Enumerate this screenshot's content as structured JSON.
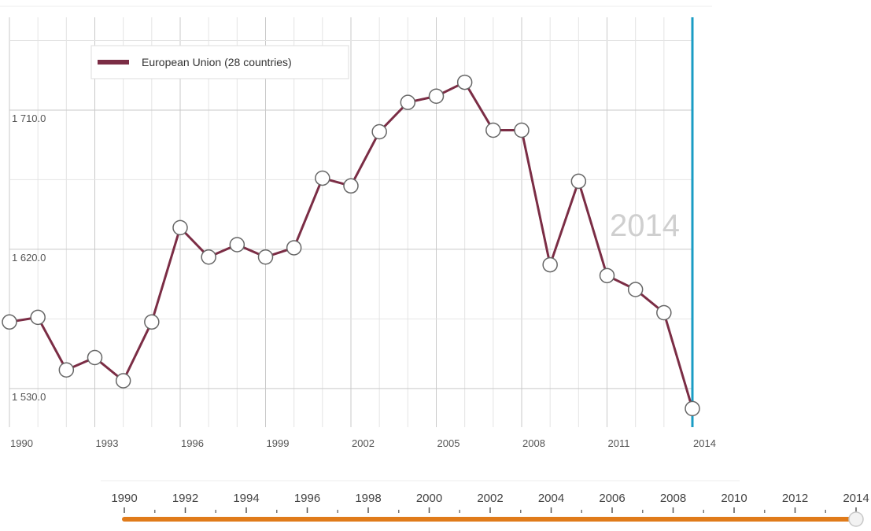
{
  "chart_data": {
    "type": "line",
    "series": [
      {
        "name": "European Union (28 countries)",
        "color": "#7b2d45",
        "x": [
          1990,
          1991,
          1992,
          1993,
          1994,
          1995,
          1996,
          1997,
          1998,
          1999,
          2000,
          2001,
          2002,
          2003,
          2004,
          2005,
          2006,
          2007,
          2008,
          2009,
          2010,
          2011,
          2012,
          2013,
          2014
        ],
        "values": [
          1573,
          1576,
          1542,
          1550,
          1535,
          1573,
          1634,
          1615,
          1623,
          1615,
          1621,
          1666,
          1661,
          1696,
          1715,
          1719,
          1728,
          1697,
          1697,
          1610,
          1664,
          1603,
          1594,
          1579,
          1517
        ]
      }
    ],
    "ylim": [
      1505,
      1770
    ],
    "yticks": [
      1530,
      1620,
      1710
    ],
    "ytick_labels": [
      "1 530.0",
      "1 620.0",
      "1 710.0"
    ],
    "xticks": [
      1990,
      1993,
      1996,
      1999,
      2002,
      2005,
      2008,
      2011,
      2014
    ],
    "xtick_labels": [
      "1990",
      "1993",
      "1996",
      "1999",
      "2002",
      "2005",
      "2008",
      "2011",
      "2014"
    ],
    "grid": true,
    "legend_position": "top-left",
    "current_year_label": "2014",
    "cursor_color": "#1a9cc4"
  },
  "slider": {
    "labels": [
      "1990",
      "1992",
      "1994",
      "1996",
      "1998",
      "2000",
      "2002",
      "2004",
      "2006",
      "2008",
      "2010",
      "2012",
      "2014"
    ],
    "selected": "2014",
    "fill_fraction": 1.0,
    "track_color": "#e07b1a"
  }
}
